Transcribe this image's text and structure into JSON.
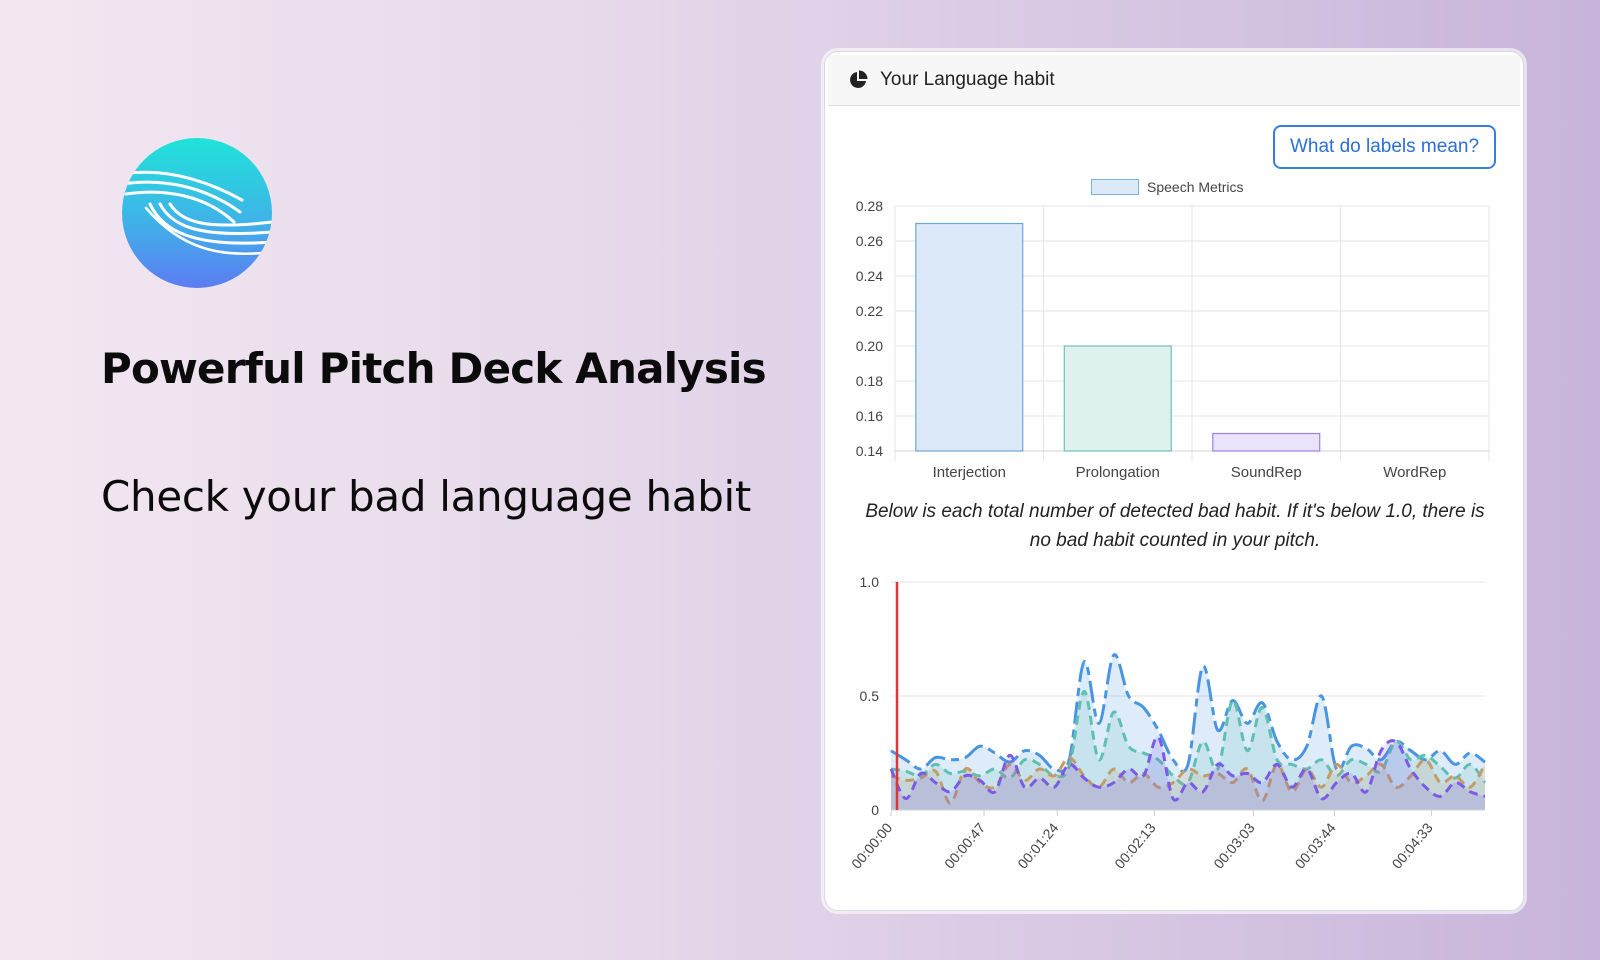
{
  "hero": {
    "logo_icon": "wave-globe-logo",
    "headline": "Powerful Pitch Deck Analysis",
    "subheadline": "Check your bad language habit"
  },
  "card": {
    "header_icon": "pie-chart-icon",
    "title": "Your Language habit",
    "help_button_label": "What do labels mean?",
    "caption": "Below is each total number of detected bad habit. If it's below 1.0, there is no bad habit counted in your pitch."
  },
  "chart_data": [
    {
      "type": "bar",
      "legend": [
        "Speech Metrics"
      ],
      "legend_position": "top-center",
      "grid": true,
      "categories": [
        "Interjection",
        "Prolongation",
        "SoundRep",
        "WordRep"
      ],
      "series": [
        {
          "name": "Speech Metrics",
          "values": [
            0.27,
            0.2,
            0.15,
            0.14
          ]
        }
      ],
      "ylim": [
        0.14,
        0.28
      ],
      "yticks": [
        "0.28",
        "0.26",
        "0.24",
        "0.22",
        "0.20",
        "0.18",
        "0.16",
        "0.14"
      ],
      "colors": {
        "fills": [
          "#dce9f8",
          "#dff1ee",
          "#ebe3fb",
          "#f0f0f0"
        ],
        "strokes": [
          "#6aa7d8",
          "#6cc0b8",
          "#a07fea",
          "#cccccc"
        ]
      }
    },
    {
      "type": "area",
      "grid": true,
      "xlim": [
        "00:00:00",
        "00:05:00"
      ],
      "ylim": [
        0,
        1.0
      ],
      "yticks": [
        "1.0",
        "0.5",
        "0"
      ],
      "xticks": [
        "00:00:00",
        "00:00:47",
        "00:01:24",
        "00:02:13",
        "00:03:03",
        "00:03:44",
        "00:04:33"
      ],
      "marker_color": "#e03535",
      "series": [
        {
          "color": "#4a95e2",
          "style": "mixed-dashed",
          "values": [
            0.26,
            0.22,
            0.18,
            0.23,
            0.22,
            0.23,
            0.28,
            0.25,
            0.21,
            0.26,
            0.24,
            0.18,
            0.22,
            0.65,
            0.38,
            0.68,
            0.5,
            0.45,
            0.35,
            0.22,
            0.2,
            0.63,
            0.35,
            0.48,
            0.38,
            0.47,
            0.3,
            0.22,
            0.28,
            0.5,
            0.18,
            0.28,
            0.27,
            0.22,
            0.3,
            0.26,
            0.22,
            0.26,
            0.2,
            0.25,
            0.21
          ]
        },
        {
          "color": "#5fbfb1",
          "style": "dashed",
          "values": [
            0.18,
            0.17,
            0.15,
            0.2,
            0.16,
            0.17,
            0.15,
            0.18,
            0.14,
            0.22,
            0.2,
            0.15,
            0.19,
            0.52,
            0.22,
            0.43,
            0.28,
            0.25,
            0.22,
            0.15,
            0.12,
            0.3,
            0.18,
            0.48,
            0.26,
            0.45,
            0.22,
            0.2,
            0.18,
            0.22,
            0.15,
            0.22,
            0.2,
            0.17,
            0.3,
            0.22,
            0.24,
            0.19,
            0.14,
            0.2,
            0.12
          ]
        },
        {
          "color": "#c29c6b",
          "style": "dashed",
          "values": [
            0.15,
            0.13,
            0.14,
            0.17,
            0.03,
            0.18,
            0.12,
            0.1,
            0.2,
            0.13,
            0.18,
            0.15,
            0.23,
            0.15,
            0.1,
            0.18,
            0.12,
            0.16,
            0.1,
            0.12,
            0.18,
            0.15,
            0.16,
            0.12,
            0.18,
            0.04,
            0.2,
            0.08,
            0.18,
            0.1,
            0.2,
            0.12,
            0.15,
            0.2,
            0.1,
            0.15,
            0.22,
            0.12,
            0.15,
            0.1,
            0.2
          ]
        },
        {
          "color": "#7a5be8",
          "style": "dashed",
          "values": [
            0.18,
            0.05,
            0.16,
            0.12,
            0.08,
            0.15,
            0.13,
            0.08,
            0.24,
            0.1,
            0.14,
            0.1,
            0.2,
            0.14,
            0.1,
            0.12,
            0.18,
            0.15,
            0.32,
            0.05,
            0.12,
            0.08,
            0.2,
            0.15,
            0.16,
            0.12,
            0.2,
            0.1,
            0.18,
            0.05,
            0.12,
            0.16,
            0.08,
            0.26,
            0.3,
            0.18,
            0.1,
            0.06,
            0.12,
            0.08,
            0.06
          ]
        }
      ]
    }
  ]
}
